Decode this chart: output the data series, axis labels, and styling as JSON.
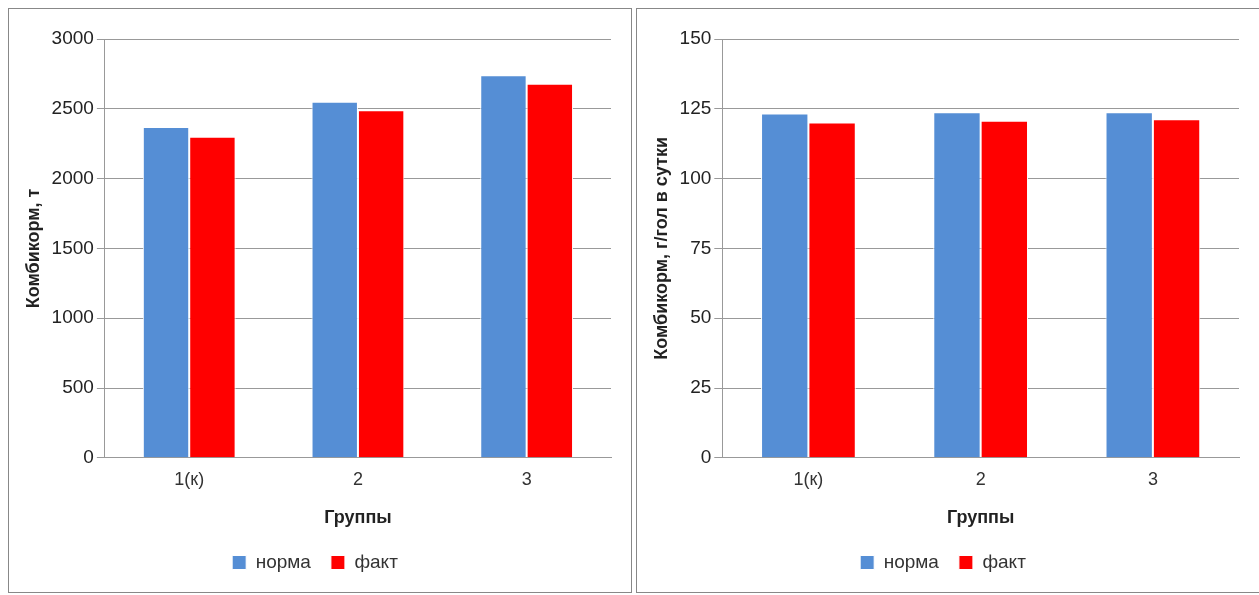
{
  "chart_data": [
    {
      "type": "bar",
      "xlabel": "Группы",
      "ylabel": "Комбикорм, т",
      "categories": [
        "1(к)",
        "2",
        "3"
      ],
      "series": [
        {
          "name": "норма",
          "color": "#558ed5",
          "values": [
            2370,
            2550,
            2740
          ]
        },
        {
          "name": "факт",
          "color": "#ff0000",
          "values": [
            2300,
            2490,
            2680
          ]
        }
      ],
      "ylim": [
        0,
        3000
      ],
      "yticks": [
        0,
        500,
        1000,
        1500,
        2000,
        2500,
        3000
      ],
      "grid": "y",
      "legend": "bottom"
    },
    {
      "type": "bar",
      "xlabel": "Группы",
      "ylabel": "Комбикорм, г/гол в сутки",
      "categories": [
        "1(к)",
        "2",
        "3"
      ],
      "series": [
        {
          "name": "норма",
          "color": "#558ed5",
          "values": [
            123.3,
            123.8,
            123.8
          ]
        },
        {
          "name": "факт",
          "color": "#ff0000",
          "values": [
            120.1,
            120.7,
            121.3
          ]
        }
      ],
      "ylim": [
        0,
        150
      ],
      "yticks": [
        0,
        25,
        50,
        75,
        100,
        125,
        150
      ],
      "grid": "y",
      "legend": "bottom"
    }
  ]
}
